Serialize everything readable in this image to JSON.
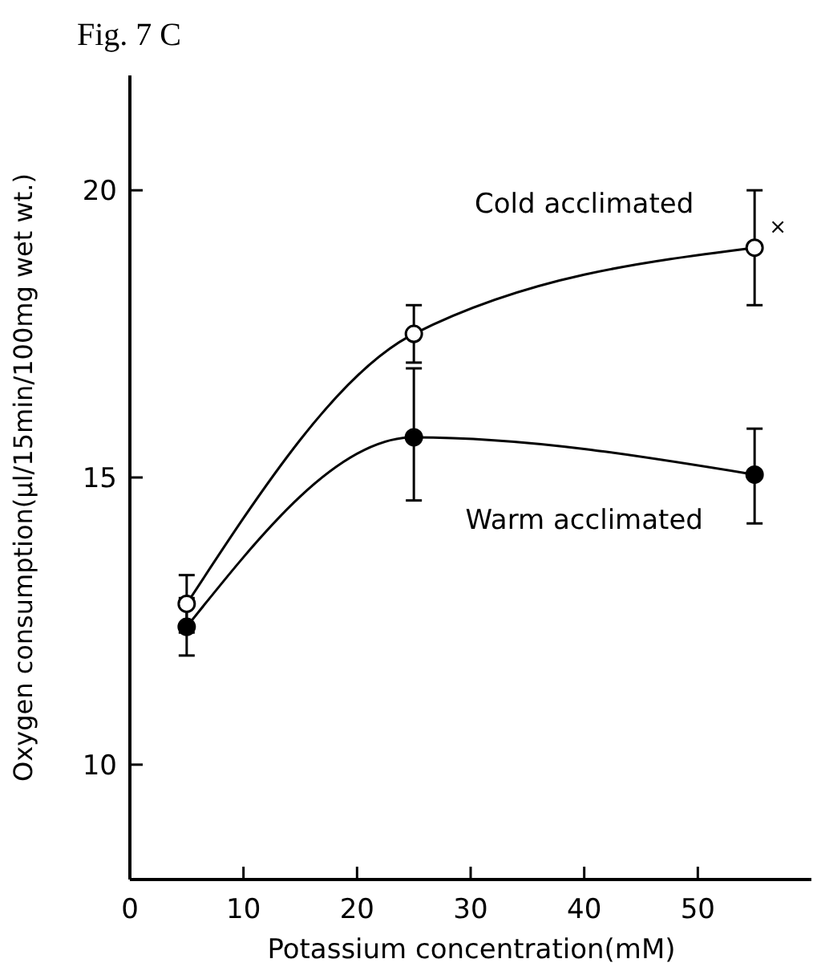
{
  "chart_data": {
    "type": "line",
    "title": "Fig. 7 C",
    "xlabel": "Potassium concentration(mM)",
    "ylabel": "Oxygen consumption(µl/15min/100mg wet wt.)",
    "x": [
      5,
      25,
      55
    ],
    "series": [
      {
        "name": "Cold acclimated",
        "color": "#000000",
        "values": [
          12.8,
          17.5,
          19.0
        ],
        "errors": [
          0.5,
          0.5,
          1.0
        ]
      },
      {
        "name": "Warm acclimated",
        "color": "#000000",
        "values": [
          12.4,
          15.7,
          15.05
        ],
        "errors": [
          0.5,
          [
            14.6,
            16.9
          ],
          [
            14.2,
            15.85
          ]
        ]
      }
    ],
    "annotations": [
      {
        "text": "×",
        "x": 55,
        "y": 19.0
      }
    ],
    "xlim": [
      0,
      60
    ],
    "xticks": [
      0,
      10,
      20,
      30,
      40,
      50
    ],
    "ylim": [
      8,
      22
    ],
    "yticks": [
      10,
      15,
      20
    ],
    "marker": "circle",
    "line_style": "solid",
    "grid": false
  }
}
